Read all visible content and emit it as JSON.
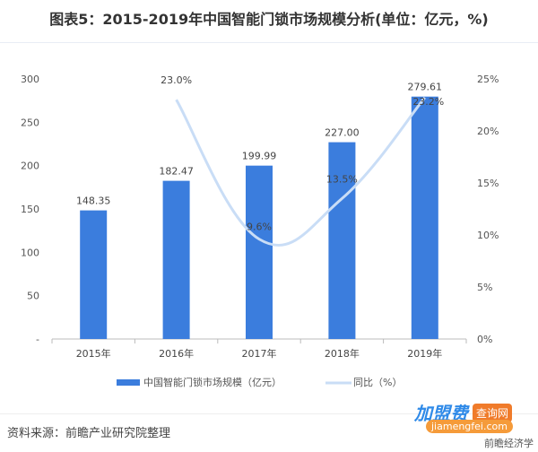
{
  "title": "图表5：2015-2019年中国智能门锁市场规模分析(单位：亿元，%)",
  "source": "资料来源：前瞻产业研究院整理",
  "watermark": {
    "brand": "前瞻产业研究院",
    "app": "前瞻经济学人APP",
    "badge": "加盟费",
    "badge_tag": "查询网",
    "badge_url": "jiamengfei.com"
  },
  "chart_data": {
    "type": "bar+line",
    "categories": [
      "2015年",
      "2016年",
      "2017年",
      "2018年",
      "2019年"
    ],
    "series": [
      {
        "name": "中国智能门锁市场规模（亿元）",
        "type": "bar",
        "axis": "left",
        "values": [
          148.35,
          182.47,
          199.99,
          227.0,
          279.61
        ],
        "labels": [
          "148.35",
          "182.47",
          "199.99",
          "227.00",
          "279.61"
        ],
        "color": "#3b7ddd"
      },
      {
        "name": "同比（%）",
        "type": "line",
        "axis": "right",
        "values": [
          null,
          23.0,
          9.6,
          13.5,
          23.2
        ],
        "labels": [
          "",
          "23.0%",
          "9.6%",
          "13.5%",
          "23.2%"
        ],
        "color": "#c9ddf6"
      }
    ],
    "left_axis": {
      "ylim": [
        0,
        300
      ],
      "ticks": [
        "-",
        "50",
        "100",
        "150",
        "200",
        "250",
        "300"
      ]
    },
    "right_axis": {
      "ylim": [
        0,
        25
      ],
      "ticks": [
        "0%",
        "5%",
        "10%",
        "15%",
        "20%",
        "25%"
      ]
    },
    "legend": "bottom",
    "grid": false
  }
}
